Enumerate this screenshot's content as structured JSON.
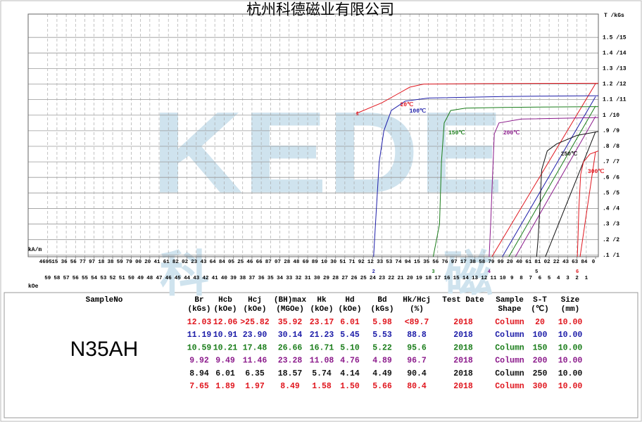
{
  "chart_data": {
    "type": "line",
    "title": "杭州科德磁业有限公司",
    "y_axis_label": "T /kGs",
    "x_axis_label": "kOe",
    "x2_axis_label": "kA/m",
    "watermark": {
      "text": "KEDE",
      "chars": [
        "科",
        "磁"
      ]
    },
    "xlim": [
      61.1,
      -0.3
    ],
    "ylim": [
      0.9,
      16.5
    ],
    "grid": true,
    "xticks": [
      59,
      58,
      57,
      56,
      55,
      54,
      53,
      52,
      51,
      50,
      49,
      48,
      47,
      46,
      45,
      44,
      43,
      42,
      41,
      40,
      39,
      38,
      37,
      36,
      35,
      34,
      33,
      32,
      31,
      30,
      29,
      28,
      27,
      26,
      25,
      24,
      23,
      22,
      21,
      20,
      19,
      18,
      17,
      16,
      15,
      14,
      13,
      12,
      11,
      10,
      9,
      8,
      7,
      6,
      5,
      4,
      3,
      2,
      1
    ],
    "x2ticks": [
      {
        "value": 59,
        "label": "4695"
      },
      {
        "value": 58,
        "label": "15"
      },
      {
        "value": 57,
        "label": "36"
      },
      {
        "value": 56,
        "label": "56"
      },
      {
        "value": 55,
        "label": "77"
      },
      {
        "value": 54,
        "label": "97"
      },
      {
        "value": 53,
        "label": "18"
      },
      {
        "value": 52,
        "label": "38"
      },
      {
        "value": 51,
        "label": "59"
      },
      {
        "value": 50,
        "label": "79"
      },
      {
        "value": 49,
        "label": "00"
      },
      {
        "value": 48,
        "label": "20"
      },
      {
        "value": 47,
        "label": "41"
      },
      {
        "value": 46,
        "label": "61"
      },
      {
        "value": 45,
        "label": "82"
      },
      {
        "value": 44,
        "label": "02"
      },
      {
        "value": 43,
        "label": "23"
      },
      {
        "value": 42,
        "label": "43"
      },
      {
        "value": 41,
        "label": "64"
      },
      {
        "value": 40,
        "label": "84"
      },
      {
        "value": 39,
        "label": "05"
      },
      {
        "value": 38,
        "label": "25"
      },
      {
        "value": 37,
        "label": "46"
      },
      {
        "value": 36,
        "label": "66"
      },
      {
        "value": 35,
        "label": "87"
      },
      {
        "value": 34,
        "label": "07"
      },
      {
        "value": 33,
        "label": "28"
      },
      {
        "value": 32,
        "label": "48"
      },
      {
        "value": 31,
        "label": "69"
      },
      {
        "value": 30,
        "label": "89"
      },
      {
        "value": 29,
        "label": "10"
      },
      {
        "value": 28,
        "label": "30"
      },
      {
        "value": 27,
        "label": "51"
      },
      {
        "value": 26,
        "label": "71"
      },
      {
        "value": 25,
        "label": "92"
      },
      {
        "value": 24,
        "label": "12"
      },
      {
        "value": 23,
        "label": "33"
      },
      {
        "value": 22,
        "label": "53"
      },
      {
        "value": 21,
        "label": "74"
      },
      {
        "value": 20,
        "label": "94"
      },
      {
        "value": 19,
        "label": "15"
      },
      {
        "value": 18,
        "label": "35"
      },
      {
        "value": 17,
        "label": "56"
      },
      {
        "value": 16,
        "label": "76"
      },
      {
        "value": 15,
        "label": "97"
      },
      {
        "value": 14,
        "label": "17"
      },
      {
        "value": 13,
        "label": "38"
      },
      {
        "value": 12,
        "label": "58"
      },
      {
        "value": 11,
        "label": "79"
      },
      {
        "value": 10,
        "label": "99"
      },
      {
        "value": 9,
        "label": "20"
      },
      {
        "value": 8,
        "label": "40"
      },
      {
        "value": 7,
        "label": "61"
      },
      {
        "value": 6,
        "label": "81"
      },
      {
        "value": 5,
        "label": "02"
      },
      {
        "value": 4,
        "label": "22"
      },
      {
        "value": 3,
        "label": "43"
      },
      {
        "value": 2,
        "label": "63"
      },
      {
        "value": 1,
        "label": "84"
      },
      {
        "value": 0,
        "label": "0"
      }
    ],
    "yticks": [
      {
        "value": 1,
        "label": ".1 /1"
      },
      {
        "value": 2,
        "label": ".2 /2"
      },
      {
        "value": 3,
        "label": ".3 /3"
      },
      {
        "value": 4,
        "label": ".4 /4"
      },
      {
        "value": 5,
        "label": ".5 /5"
      },
      {
        "value": 6,
        "label": ".6 /6"
      },
      {
        "value": 7,
        "label": ".7 /7"
      },
      {
        "value": 8,
        "label": ".8 /8"
      },
      {
        "value": 9,
        "label": ".9 /9"
      },
      {
        "value": 10,
        "label": "1 /10"
      },
      {
        "value": 11,
        "label": "1.1 /11"
      },
      {
        "value": 12,
        "label": "1.2 /12"
      },
      {
        "value": 13,
        "label": "1.3 /13"
      },
      {
        "value": 14,
        "label": "1.4 /14"
      },
      {
        "value": 15,
        "label": "1.5 /15"
      }
    ],
    "series": [
      {
        "name": "20℃",
        "curve_no": "1",
        "color": "#e0161e",
        "x": [
          -0.3,
          12,
          18.5,
          20,
          21.5,
          23,
          25.8
        ],
        "values": [
          12.05,
          12.03,
          12.0,
          11.8,
          11.3,
          10.8,
          10.1
        ],
        "bh_x": [
          0,
          12.06
        ],
        "bh_values": [
          12.03,
          0
        ]
      },
      {
        "name": "100℃",
        "curve_no": "2",
        "color": "#1c1ca8",
        "x": [
          -0.3,
          10,
          18,
          20.5,
          22,
          22.8,
          23.3,
          23.6,
          23.9
        ],
        "values": [
          11.25,
          11.2,
          11.1,
          10.9,
          10.3,
          9.0,
          7.0,
          4.0,
          0.9
        ],
        "bh_x": [
          0,
          10.91
        ],
        "bh_values": [
          11.19,
          0
        ]
      },
      {
        "name": "150℃",
        "curve_no": "3",
        "color": "#1a7d1a",
        "x": [
          -0.3,
          10,
          14,
          15.6,
          16.3,
          16.6,
          16.8,
          17.48
        ],
        "values": [
          10.55,
          10.5,
          10.45,
          10.3,
          9.5,
          7.0,
          3.0,
          0.9
        ],
        "bh_x": [
          0,
          10.21
        ],
        "bh_values": [
          10.59,
          0
        ]
      },
      {
        "name": "200℃",
        "curve_no": "4",
        "color": "#8b1a8b",
        "x": [
          -0.3,
          8,
          10.4,
          10.9,
          11.1,
          11.3,
          11.46
        ],
        "values": [
          9.85,
          9.75,
          9.5,
          8.8,
          6.0,
          3.0,
          0.9
        ],
        "bh_x": [
          0,
          9.49
        ],
        "bh_values": [
          9.92,
          0
        ]
      },
      {
        "name": "250℃",
        "curve_no": "5",
        "color": "#111111",
        "x": [
          -0.3,
          2,
          4.2,
          5.2,
          5.8,
          6.0,
          6.2,
          6.35
        ],
        "values": [
          8.95,
          8.7,
          8.15,
          7.7,
          6.5,
          4.0,
          2.0,
          0.9
        ],
        "bh_x": [
          0,
          6.01
        ],
        "bh_values": [
          8.94,
          0
        ]
      },
      {
        "name": "300℃",
        "curve_no": "6",
        "color": "#e0161e",
        "x": [
          -0.3,
          0.6,
          1.3,
          1.6,
          1.8,
          1.9,
          1.97
        ],
        "values": [
          7.7,
          7.5,
          7.0,
          6.2,
          4.0,
          2.0,
          0.9
        ],
        "bh_x": [
          0,
          1.89
        ],
        "bh_values": [
          7.65,
          0
        ]
      }
    ]
  },
  "table": {
    "headers": [
      [
        "SampleNo"
      ],
      [
        "Br",
        "(kGs)"
      ],
      [
        "Hcb",
        "(kOe)"
      ],
      [
        "Hcj",
        "(kOe)"
      ],
      [
        "(BH)max",
        "(MGOe)"
      ],
      [
        "Hk",
        "(kOe)"
      ],
      [
        "Hd",
        "(kOe)"
      ],
      [
        "Bd",
        "(kGs)"
      ],
      [
        "Hk/Hcj",
        "(%)"
      ],
      [
        "Test Date"
      ],
      [
        "Sample",
        "Shape"
      ],
      [
        "S-T",
        "(℃)"
      ],
      [
        "Size",
        "(mm)"
      ]
    ],
    "sample": "N35AH",
    "rows": [
      [
        "12.03",
        "12.06",
        ">25.82",
        "35.92",
        "23.17",
        "6.01",
        "5.98",
        "<89.7",
        "2018",
        "Column",
        "20",
        "10.00"
      ],
      [
        "11.19",
        "10.91",
        "23.90",
        "30.14",
        "21.23",
        "5.45",
        "5.53",
        "88.8",
        "2018",
        "Column",
        "100",
        "10.00"
      ],
      [
        "10.59",
        "10.21",
        "17.48",
        "26.66",
        "16.71",
        "5.10",
        "5.22",
        "95.6",
        "2018",
        "Column",
        "150",
        "10.00"
      ],
      [
        "9.92",
        "9.49",
        "11.46",
        "23.28",
        "11.08",
        "4.76",
        "4.89",
        "96.7",
        "2018",
        "Column",
        "200",
        "10.00"
      ],
      [
        "8.94",
        "6.01",
        "6.35",
        "18.57",
        "5.74",
        "4.14",
        "4.49",
        "90.4",
        "2018",
        "Column",
        "250",
        "10.00"
      ],
      [
        "7.65",
        "1.89",
        "1.97",
        "8.49",
        "1.58",
        "1.50",
        "5.66",
        "80.4",
        "2018",
        "Column",
        "300",
        "10.00"
      ]
    ]
  }
}
